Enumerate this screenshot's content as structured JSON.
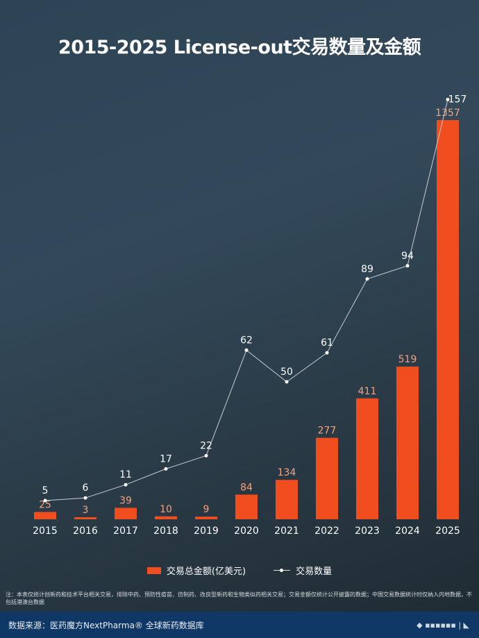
{
  "chart_data": {
    "type": "bar+line",
    "title": "2015-2025 License-out交易数量及金额",
    "categories": [
      "2015",
      "2016",
      "2017",
      "2018",
      "2019",
      "2020",
      "2021",
      "2022",
      "2023",
      "2024",
      "2025"
    ],
    "series": [
      {
        "name": "交易总金额(亿美元)",
        "type": "bar",
        "color": "#f04e1e",
        "values": [
          25,
          3,
          39,
          10,
          9,
          84,
          134,
          277,
          411,
          519,
          1357
        ]
      },
      {
        "name": "交易数量",
        "type": "line",
        "color": "#ffffff",
        "values": [
          5,
          6,
          11,
          17,
          22,
          62,
          50,
          61,
          89,
          94,
          157
        ]
      }
    ],
    "grid": false,
    "legend": "bottom"
  },
  "note": "注：本表仅统计创新药和技术平台相关交易，排除中药、预防性疫苗、仿制药、改良型新药和生物类似药相关交易；交易金额仅统计公开披露的数据；中国交易数据统计时仅纳入内地数据，不包括港澳台数据",
  "footer": {
    "source": "数据来源：医药魔方NextPharma® 全球新药数据库"
  }
}
